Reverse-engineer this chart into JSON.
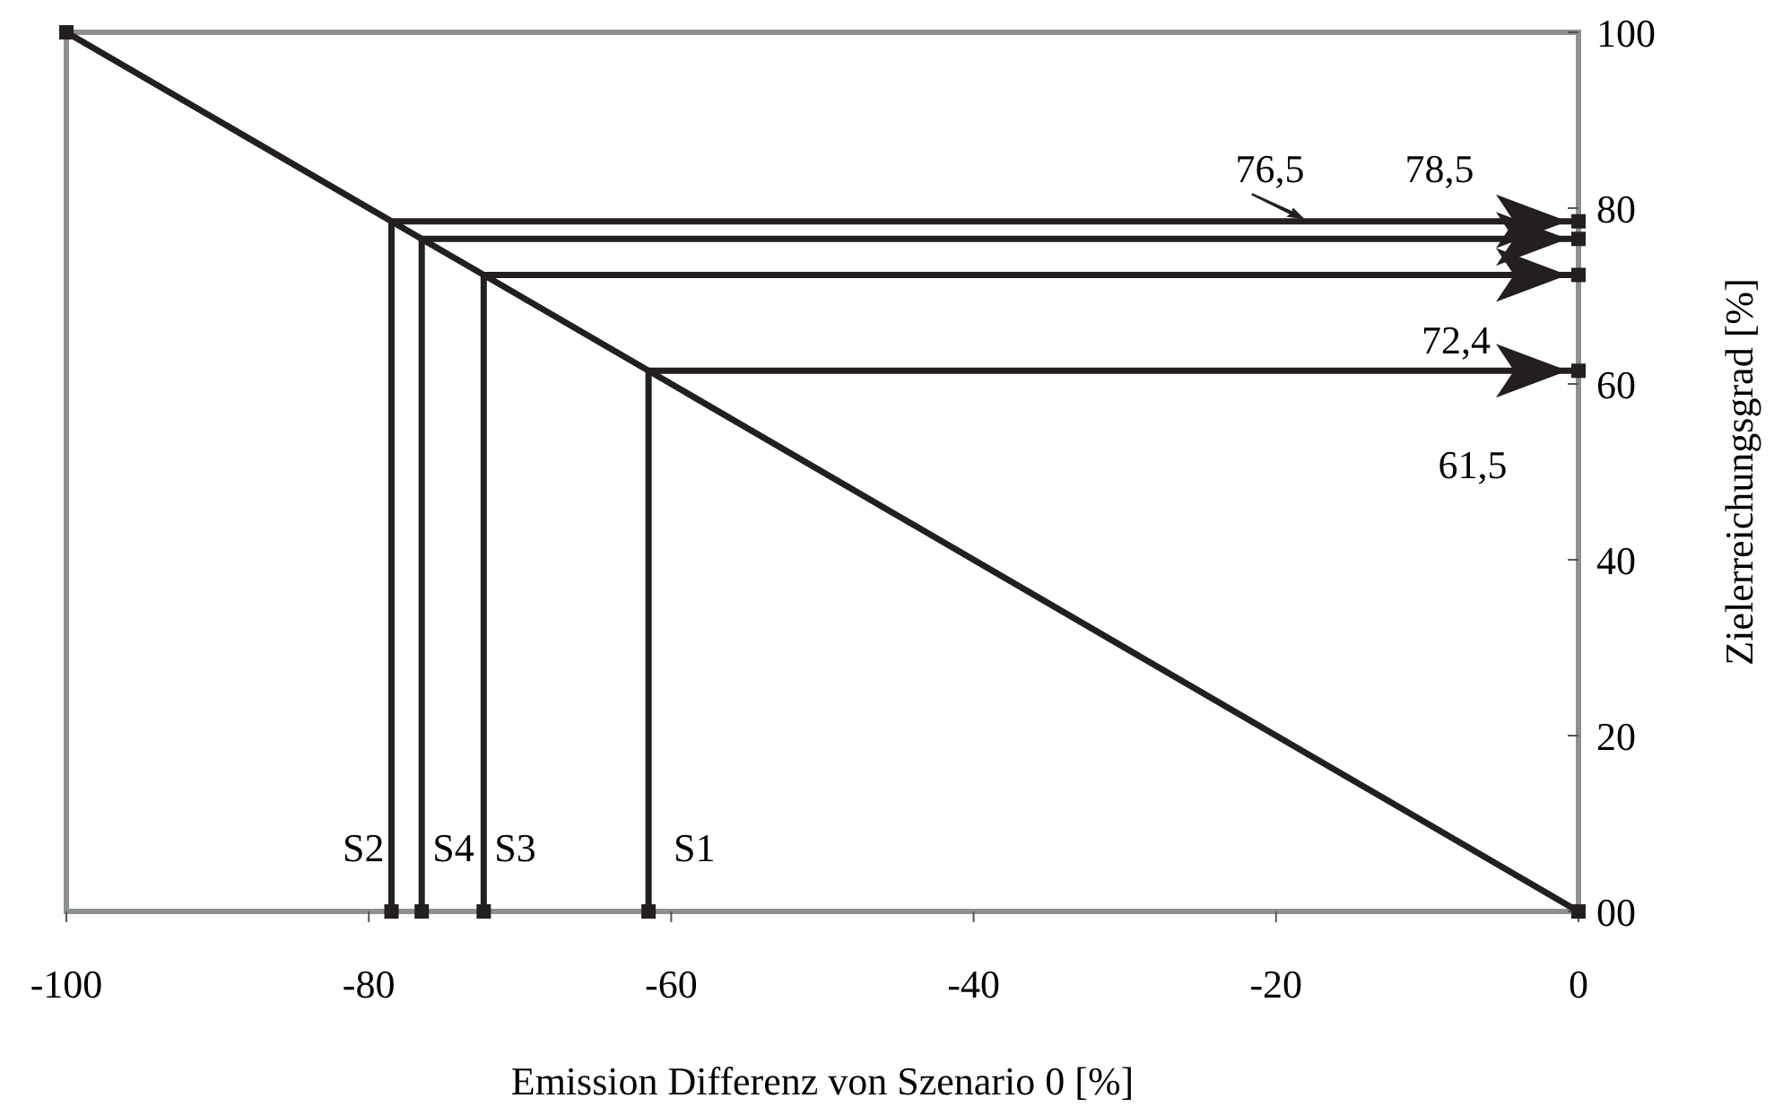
{
  "chart_data": {
    "type": "line",
    "xlabel": "Emission Differenz von Szenario 0 [%]",
    "ylabel": "Zielerreichungsgrad [%]",
    "xlim": [
      -100,
      0
    ],
    "xticks": [
      -100,
      -80,
      -60,
      -40,
      -20,
      0
    ],
    "ylim": [
      0,
      100
    ],
    "yticks": [
      {
        "value": 0,
        "label": "00"
      },
      20,
      40,
      60,
      80,
      100
    ],
    "marker": "square",
    "line_style": "solid",
    "grid": false,
    "series": [
      {
        "color": "#231f20",
        "x": [
          -100,
          0
        ],
        "values": [
          100,
          0
        ]
      },
      {
        "name": "S1",
        "color": "#231f20",
        "x": [
          -61.5,
          -61.5,
          0
        ],
        "values": [
          0,
          61.5,
          61.5
        ]
      },
      {
        "name": "S2",
        "color": "#231f20",
        "x": [
          -78.5,
          -78.5,
          0
        ],
        "values": [
          0,
          78.5,
          78.5
        ]
      },
      {
        "name": "S3",
        "color": "#231f20",
        "x": [
          -72.4,
          -72.4,
          0
        ],
        "values": [
          0,
          72.4,
          72.4
        ]
      },
      {
        "name": "S4",
        "color": "#231f20",
        "x": [
          -76.5,
          -76.5,
          0
        ],
        "values": [
          0,
          76.5,
          76.5
        ]
      }
    ],
    "annotations": [
      "76,5",
      "78,5",
      "72,4",
      "61,5"
    ]
  }
}
